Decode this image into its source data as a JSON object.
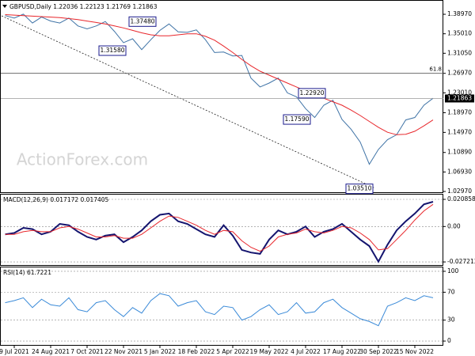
{
  "chart_data": [
    {
      "type": "line",
      "title": "GBPUSD,Daily 1.22036 1.22123 1.21769 1.21863",
      "watermark": "ActionForex.com",
      "categories": [
        null,
        "9 Jul 2021",
        null,
        null,
        null,
        "24 Aug 2021",
        null,
        null,
        null,
        "7 Oct 2021",
        null,
        null,
        null,
        "22 Nov 2021",
        null,
        null,
        null,
        "5 Jan 2022",
        null,
        null,
        null,
        "18 Feb 2022",
        null,
        null,
        null,
        "5 Apr 2022",
        null,
        null,
        null,
        "19 May 2022",
        null,
        null,
        null,
        "4 Jul 2022",
        null,
        null,
        null,
        "17 Aug 2022",
        null,
        null,
        null,
        "30 Sep 2022",
        null,
        null,
        null,
        "15 Nov 2022",
        null,
        null
      ],
      "series": [
        {
          "name": "Close",
          "color": "#3f73a6",
          "values": [
            1.387,
            1.382,
            1.39,
            1.372,
            1.384,
            1.376,
            1.372,
            1.382,
            1.366,
            1.36,
            1.366,
            1.375,
            1.355,
            1.332,
            1.34,
            1.318,
            1.338,
            1.357,
            1.37,
            1.354,
            1.353,
            1.358,
            1.338,
            1.312,
            1.313,
            1.305,
            1.306,
            1.26,
            1.242,
            1.25,
            1.26,
            1.23,
            1.222,
            1.198,
            1.18,
            1.205,
            1.215,
            1.176,
            1.156,
            1.13,
            1.085,
            1.115,
            1.135,
            1.145,
            1.175,
            1.18,
            1.205,
            1.219
          ]
        },
        {
          "name": "MA",
          "color": "#e8262b",
          "values": [
            1.389,
            1.388,
            1.387,
            1.386,
            1.385,
            1.384,
            1.383,
            1.381,
            1.379,
            1.376,
            1.373,
            1.37,
            1.366,
            1.362,
            1.357,
            1.352,
            1.348,
            1.346,
            1.346,
            1.348,
            1.35,
            1.35,
            1.345,
            1.337,
            1.325,
            1.312,
            1.298,
            1.285,
            1.274,
            1.266,
            1.258,
            1.25,
            1.242,
            1.234,
            1.226,
            1.219,
            1.212,
            1.205,
            1.195,
            1.184,
            1.172,
            1.16,
            1.15,
            1.145,
            1.146,
            1.152,
            1.163,
            1.175
          ]
        }
      ],
      "ylim": [
        1.0265,
        1.4155
      ],
      "yticks": [
        {
          "value": 1.3897,
          "label": "1.38970"
        },
        {
          "value": 1.3501,
          "label": "1.35010"
        },
        {
          "value": 1.3105,
          "label": "1.31050"
        },
        {
          "value": 1.2697,
          "label": "1.26970"
        },
        {
          "value": 1.2301,
          "label": "1.23010"
        },
        {
          "value": 1.1897,
          "label": "1.18970"
        },
        {
          "value": 1.1497,
          "label": "1.14970"
        },
        {
          "value": 1.1089,
          "label": "1.10890"
        },
        {
          "value": 1.0693,
          "label": "1.06930"
        },
        {
          "value": 1.0297,
          "label": "1.02970"
        }
      ],
      "annotations": [
        {
          "value": 1.3748,
          "label": "1.37480"
        },
        {
          "value": 1.3158,
          "label": "1.31580"
        },
        {
          "value": 1.2292,
          "label": "1.22920"
        },
        {
          "value": 1.1759,
          "label": "1.17590"
        },
        {
          "value": 1.0351,
          "label": "1.03510"
        }
      ],
      "fib_level": {
        "value": 1.2697,
        "label": "61.8"
      },
      "last_price": {
        "value": 1.21863,
        "label": "1.21863"
      },
      "grid": false
    },
    {
      "type": "line",
      "title": "MACD(12,26,9) 0.017172 0.017405",
      "series": [
        {
          "name": "MACD",
          "color": "#14146e",
          "values": [
            -0.006,
            -0.005,
            -0.001,
            -0.002,
            -0.006,
            -0.004,
            0.002,
            0.001,
            -0.004,
            -0.008,
            -0.01,
            -0.007,
            -0.006,
            -0.012,
            -0.008,
            -0.003,
            0.004,
            0.009,
            0.01,
            0.004,
            0.002,
            -0.002,
            -0.006,
            -0.008,
            0.001,
            -0.007,
            -0.018,
            -0.02,
            -0.021,
            -0.01,
            -0.003,
            -0.006,
            -0.004,
            0.0,
            -0.008,
            -0.004,
            -0.002,
            0.002,
            -0.004,
            -0.01,
            -0.015,
            -0.027,
            -0.014,
            -0.003,
            0.004,
            0.01,
            0.017,
            0.019
          ]
        },
        {
          "name": "Signal",
          "color": "#e8262b",
          "values": [
            -0.006,
            -0.006,
            -0.004,
            -0.003,
            -0.004,
            -0.004,
            -0.001,
            0.0,
            -0.002,
            -0.005,
            -0.008,
            -0.008,
            -0.007,
            -0.009,
            -0.009,
            -0.006,
            -0.001,
            0.004,
            0.008,
            0.007,
            0.004,
            0.001,
            -0.003,
            -0.006,
            -0.003,
            -0.004,
            -0.011,
            -0.016,
            -0.019,
            -0.015,
            -0.008,
            -0.006,
            -0.005,
            -0.002,
            -0.004,
            -0.005,
            -0.003,
            0.0,
            -0.001,
            -0.005,
            -0.01,
            -0.018,
            -0.017,
            -0.01,
            -0.003,
            0.005,
            0.012,
            0.017
          ]
        }
      ],
      "ylim": [
        -0.0302,
        0.0245
      ],
      "yticks": [
        0.020858,
        {
          "value": 0,
          "label": "0.00"
        },
        -0.027213
      ],
      "grid": true
    },
    {
      "type": "line",
      "title": "RSI(14) 61.7221",
      "series": [
        {
          "name": "RSI",
          "color": "#3a8ad8",
          "values": [
            55,
            58,
            62,
            48,
            60,
            52,
            50,
            62,
            45,
            42,
            55,
            58,
            45,
            35,
            48,
            40,
            58,
            68,
            65,
            50,
            55,
            58,
            42,
            38,
            50,
            48,
            30,
            35,
            45,
            52,
            38,
            42,
            55,
            40,
            42,
            55,
            60,
            48,
            40,
            32,
            28,
            22,
            50,
            55,
            62,
            58,
            65,
            62
          ]
        }
      ],
      "ylim": [
        -6.7,
        105.6
      ],
      "yticks": [
        100,
        70,
        30,
        0
      ],
      "grid": true
    }
  ]
}
